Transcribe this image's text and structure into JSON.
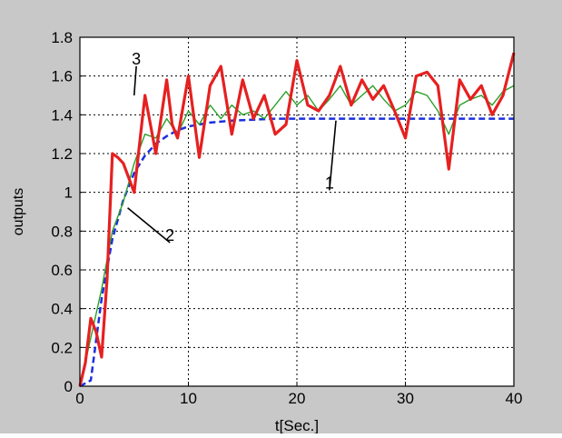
{
  "chart_data": {
    "type": "line",
    "title": "",
    "xlabel": "t[Sec.]",
    "ylabel": "outputs",
    "xlim": [
      0,
      40
    ],
    "ylim": [
      0,
      1.8
    ],
    "xticks": [
      0,
      10,
      20,
      30,
      40
    ],
    "yticks": [
      0,
      0.2,
      0.4,
      0.6,
      0.8,
      1,
      1.2,
      1.4,
      1.6,
      1.8
    ],
    "grid": true,
    "colors": {
      "figure_background": "#c8c8c8",
      "axes_background": "#ffffff",
      "grid": "#000000"
    },
    "series": [
      {
        "label": "1",
        "color": "#1a2fe0",
        "style": "dashed",
        "x": [
          0,
          1,
          2,
          3,
          4,
          5,
          6,
          7,
          8,
          9,
          10,
          12,
          14,
          16,
          18,
          20,
          22,
          24,
          26,
          28,
          30,
          32,
          34,
          36,
          38,
          40
        ],
        "y": [
          0,
          0.03,
          0.45,
          0.76,
          0.96,
          1.1,
          1.19,
          1.25,
          1.29,
          1.32,
          1.34,
          1.36,
          1.37,
          1.375,
          1.38,
          1.38,
          1.38,
          1.38,
          1.38,
          1.38,
          1.38,
          1.38,
          1.38,
          1.38,
          1.38,
          1.38
        ]
      },
      {
        "label": "2",
        "color": "#2aa02a",
        "style": "solid",
        "x": [
          0,
          1,
          2,
          3,
          4,
          5,
          6,
          7,
          8,
          9,
          10,
          11,
          12,
          13,
          14,
          15,
          16,
          17,
          18,
          19,
          20,
          21,
          22,
          23,
          24,
          25,
          26,
          27,
          28,
          29,
          30,
          31,
          32,
          33,
          34,
          35,
          36,
          37,
          38,
          39,
          40
        ],
        "y": [
          0,
          0.25,
          0.5,
          0.8,
          0.95,
          1.15,
          1.3,
          1.28,
          1.38,
          1.3,
          1.42,
          1.35,
          1.45,
          1.38,
          1.45,
          1.4,
          1.42,
          1.38,
          1.45,
          1.52,
          1.45,
          1.5,
          1.42,
          1.48,
          1.55,
          1.45,
          1.5,
          1.55,
          1.48,
          1.42,
          1.45,
          1.52,
          1.5,
          1.42,
          1.3,
          1.45,
          1.48,
          1.5,
          1.45,
          1.52,
          1.55
        ]
      },
      {
        "label": "3",
        "color": "#e62020",
        "style": "solid-thick",
        "x": [
          0,
          0.5,
          1,
          1.5,
          2,
          2.5,
          3,
          3.5,
          4,
          5,
          5.5,
          6,
          6.5,
          7,
          8,
          8.5,
          9,
          10,
          11,
          12,
          13,
          14,
          15,
          16,
          17,
          18,
          19,
          20,
          21,
          22,
          23,
          24,
          25,
          26,
          27,
          28,
          29,
          30,
          31,
          32,
          33,
          34,
          35,
          36,
          37,
          38,
          39,
          40
        ],
        "y": [
          0,
          0.12,
          0.35,
          0.28,
          0.15,
          0.55,
          1.2,
          1.18,
          1.15,
          1.0,
          1.25,
          1.5,
          1.35,
          1.2,
          1.58,
          1.35,
          1.28,
          1.6,
          1.18,
          1.55,
          1.65,
          1.3,
          1.58,
          1.38,
          1.5,
          1.3,
          1.35,
          1.68,
          1.45,
          1.42,
          1.5,
          1.65,
          1.45,
          1.58,
          1.48,
          1.55,
          1.42,
          1.28,
          1.6,
          1.62,
          1.55,
          1.12,
          1.58,
          1.48,
          1.55,
          1.4,
          1.5,
          1.72
        ]
      }
    ],
    "annotations": [
      {
        "text": "3",
        "at": [
          5,
          1.5
        ],
        "text_at": [
          5.2,
          1.66
        ]
      },
      {
        "text": "2",
        "at": [
          4.4,
          0.92
        ],
        "text_at": [
          8.3,
          0.75
        ]
      },
      {
        "text": "1",
        "at": [
          23.6,
          1.37
        ],
        "text_at": [
          23.0,
          1.02
        ]
      }
    ]
  }
}
